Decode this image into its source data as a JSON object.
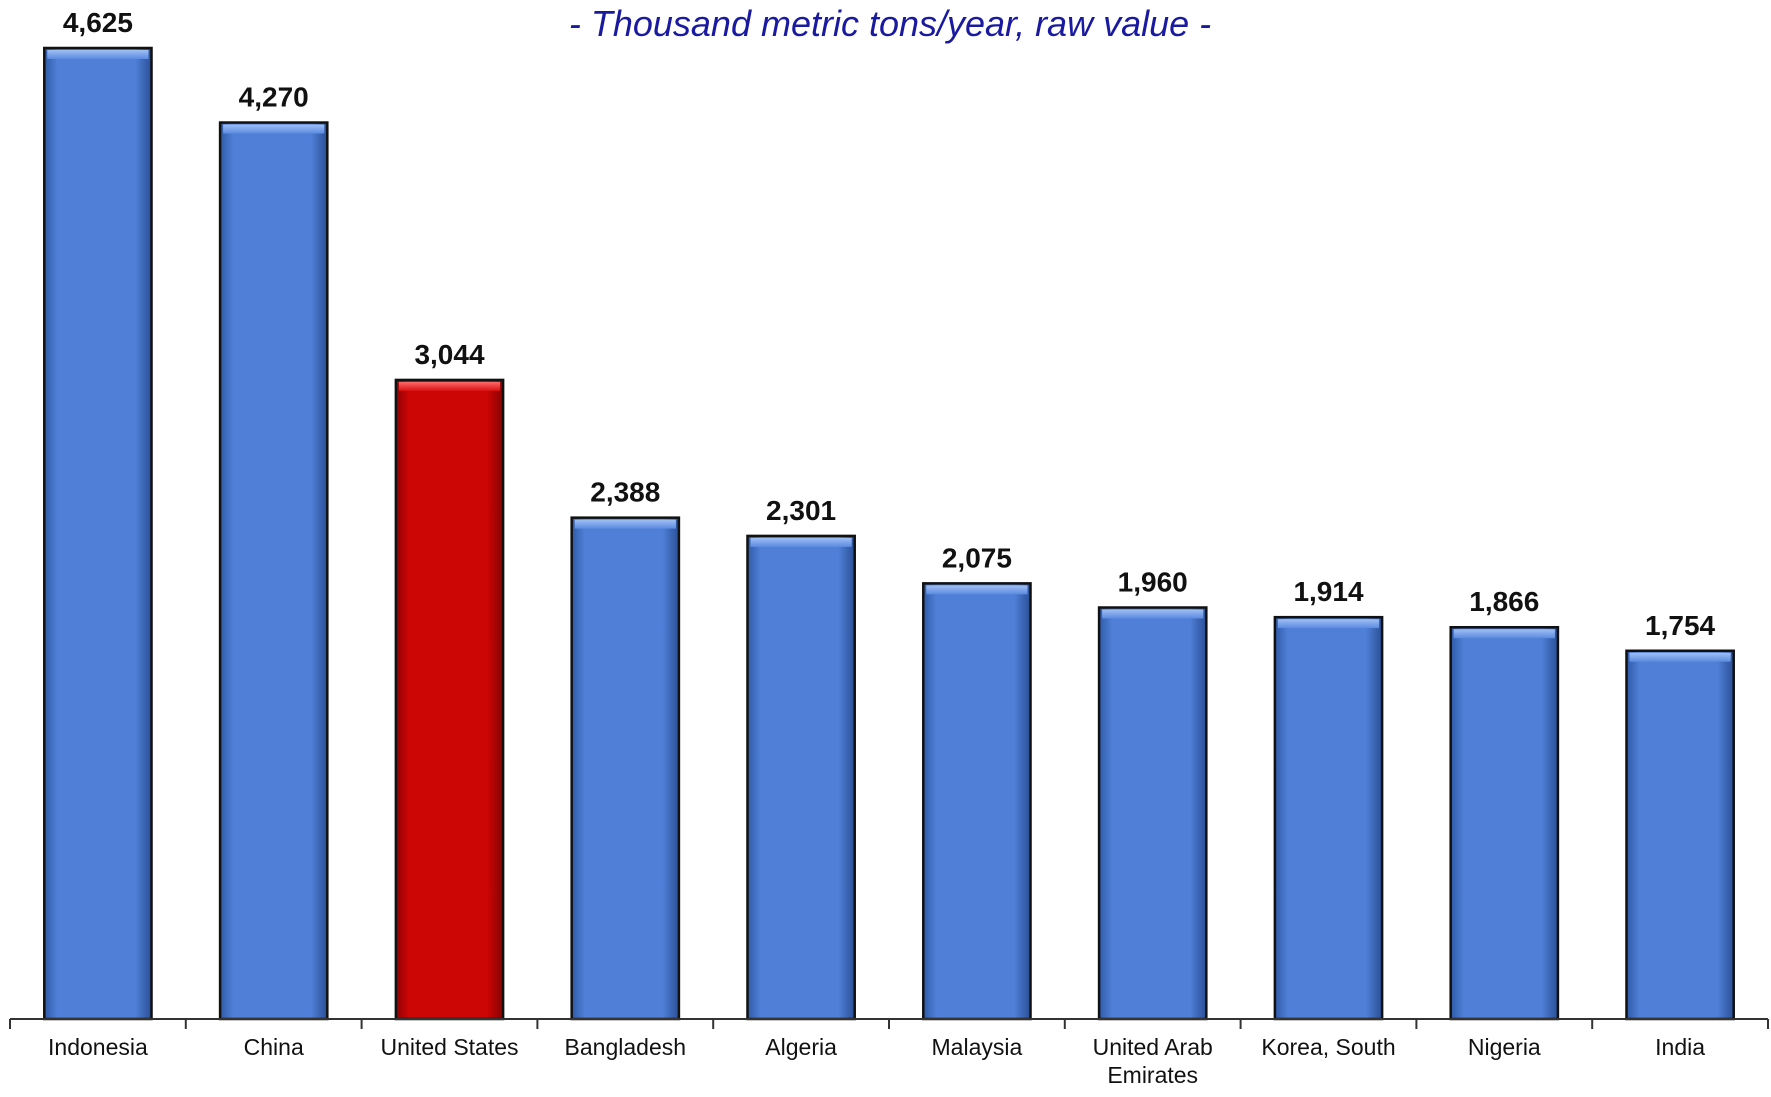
{
  "chart_data": {
    "type": "bar",
    "subtitle": "- Thousand metric tons/year, raw value -",
    "xlabel": "",
    "ylabel": "",
    "ylim": [
      0,
      4625
    ],
    "grid": false,
    "legend": "none",
    "categories": [
      "Indonesia",
      "China",
      "United States",
      "Bangladesh",
      "Algeria",
      "Malaysia",
      "United Arab Emirates",
      "Korea, South",
      "Nigeria",
      "India"
    ],
    "values": [
      4625,
      4270,
      3044,
      2388,
      2301,
      2075,
      1960,
      1914,
      1866,
      1754
    ],
    "value_labels": [
      "4,625",
      "4,270",
      "3,044",
      "2,388",
      "2,301",
      "2,075",
      "1,960",
      "1,914",
      "1,866",
      "1,754"
    ],
    "highlight_category": "United States",
    "colors": {
      "bar": "#4f7fd6",
      "bar_highlight": "#cc0505",
      "subtitle": "#1a1aa0"
    }
  }
}
